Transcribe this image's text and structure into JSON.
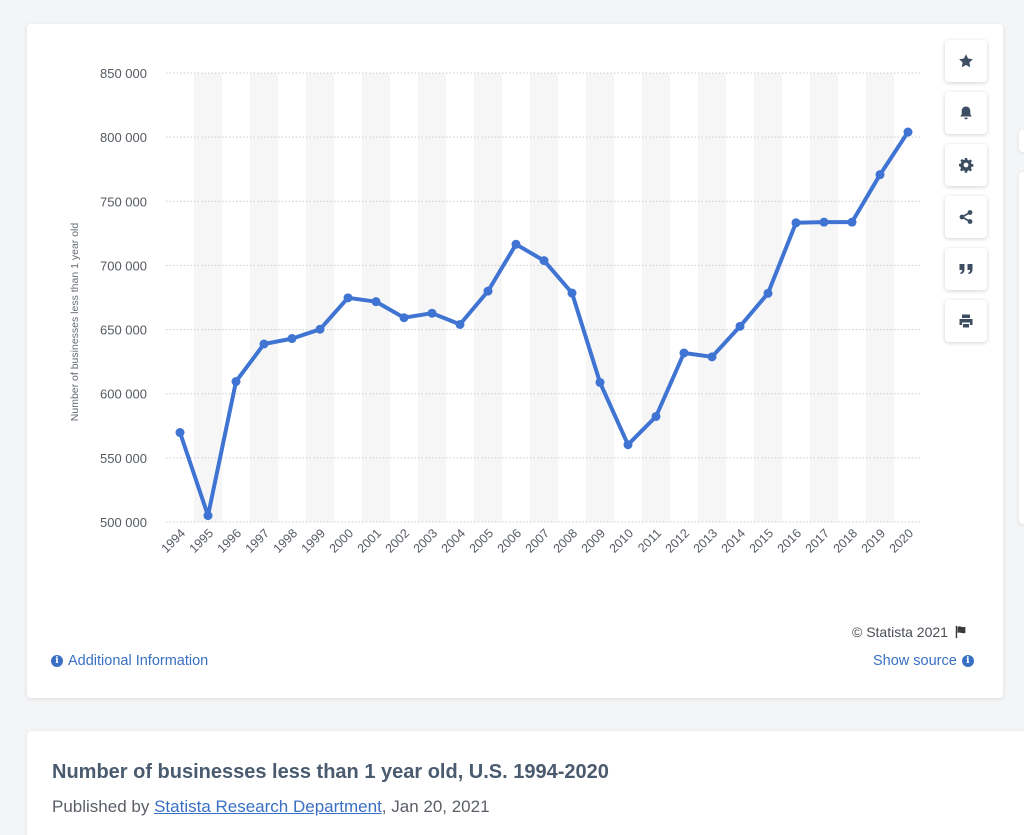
{
  "chart_data": {
    "type": "line",
    "title": "",
    "xlabel": "",
    "ylabel": "Number of businesses less than 1 year old",
    "x": [
      "1994",
      "1995",
      "1996",
      "1997",
      "1998",
      "1999",
      "2000",
      "2001",
      "2002",
      "2003",
      "2004",
      "2005",
      "2006",
      "2007",
      "2008",
      "2009",
      "2010",
      "2011",
      "2012",
      "2013",
      "2014",
      "2015",
      "2016",
      "2017",
      "2018",
      "2019",
      "2020"
    ],
    "series": [
      {
        "values": [
          569750,
          505000,
          609500,
          638750,
          643000,
          650250,
          674750,
          671750,
          659250,
          662750,
          654000,
          680000,
          716500,
          703750,
          678500,
          608750,
          560250,
          582250,
          631750,
          628750,
          652500,
          678250,
          733250,
          733750,
          733750,
          770750,
          804000
        ]
      }
    ],
    "yticks": [
      500000,
      550000,
      600000,
      650000,
      700000,
      750000,
      800000,
      850000
    ],
    "ytick_labels": [
      "500 000",
      "550 000",
      "600 000",
      "650 000",
      "700 000",
      "750 000",
      "800 000",
      "850 000"
    ],
    "ylim": [
      500000,
      850000
    ],
    "grid": "horizontal",
    "line_color": "#3f74d3",
    "band_color": "#f6f6f7"
  },
  "toolbar": {
    "buttons": [
      {
        "name": "star-icon"
      },
      {
        "name": "bell-icon"
      },
      {
        "name": "gear-icon"
      },
      {
        "name": "share-icon"
      },
      {
        "name": "quote-icon"
      },
      {
        "name": "print-icon"
      }
    ]
  },
  "footer": {
    "copyright": "© Statista 2021",
    "additional_info": "Additional Information",
    "show_source": "Show source"
  },
  "page": {
    "title": "Number of businesses less than 1 year old, U.S. 1994-2020",
    "published_prefix": "Published by ",
    "publisher": "Statista Research Department",
    "published_date": ", Jan 20, 2021"
  }
}
